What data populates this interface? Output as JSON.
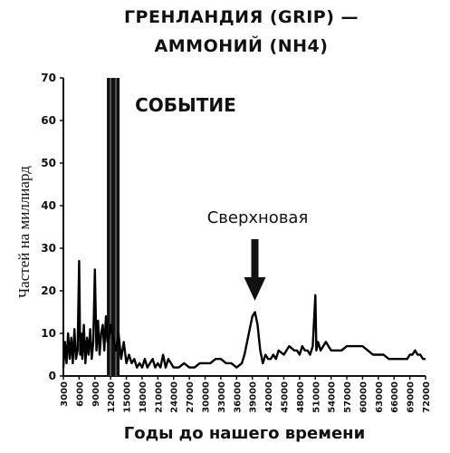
{
  "chart_data": {
    "type": "line",
    "title": "ГРЕНЛАНДИЯ (GRIP) —",
    "subtitle": "АММОНИЙ (NH4)",
    "xlabel": "Годы до нашего времени",
    "ylabel": "Частей на миллиард",
    "xlim": [
      3000,
      72000
    ],
    "ylim": [
      0,
      70
    ],
    "yticks": [
      0,
      10,
      20,
      30,
      40,
      50,
      60,
      70
    ],
    "xticks": [
      3000,
      6000,
      9000,
      12000,
      15000,
      18000,
      21000,
      24000,
      27000,
      30000,
      33000,
      36000,
      39000,
      42000,
      45000,
      48000,
      51000,
      54000,
      57000,
      60000,
      63000,
      66000,
      69000,
      72000
    ],
    "xtick_labels": [
      "3000",
      "6000",
      "9000",
      "12000",
      "15000",
      "18000",
      "21000",
      "24000",
      "27000",
      "30000",
      "33000",
      "36000",
      "39000",
      "42000",
      "45000",
      "48000",
      "51000",
      "54000",
      "57000",
      "60000",
      "63000",
      "66000",
      "69000",
      "72000"
    ],
    "grid": false,
    "series": [
      {
        "color": "#000000",
        "x": [
          3000,
          3300,
          3600,
          3900,
          4200,
          4500,
          4800,
          5100,
          5400,
          5700,
          6000,
          6200,
          6400,
          6600,
          6900,
          7200,
          7500,
          7800,
          8100,
          8400,
          8700,
          9000,
          9300,
          9600,
          9900,
          10200,
          10500,
          10800,
          11100,
          11400,
          11700,
          12000,
          12300,
          12600,
          13000,
          13500,
          14000,
          14500,
          15000,
          15500,
          16000,
          16500,
          17000,
          17500,
          18000,
          18500,
          19000,
          19500,
          20000,
          20500,
          21000,
          21500,
          22000,
          22500,
          23000,
          23500,
          24000,
          25000,
          26000,
          27000,
          28000,
          29000,
          30000,
          31000,
          32000,
          33000,
          34000,
          35000,
          36000,
          37000,
          37500,
          38000,
          38500,
          39000,
          39500,
          40000,
          40500,
          41000,
          41500,
          42000,
          42500,
          43000,
          43500,
          44000,
          45000,
          46000,
          47000,
          47500,
          48000,
          48500,
          49000,
          49500,
          50000,
          50500,
          51000,
          51200,
          51500,
          52000,
          52500,
          53000,
          53500,
          54000,
          55000,
          56000,
          57000,
          58000,
          59000,
          60000,
          61000,
          62000,
          63000,
          64000,
          65000,
          66000,
          67000,
          68000,
          68500,
          69000,
          69500,
          70000,
          70500,
          71000,
          71500,
          72000
        ],
        "y": [
          2,
          8,
          3,
          10,
          4,
          9,
          3,
          11,
          4,
          6,
          27,
          5,
          10,
          4,
          12,
          3,
          9,
          5,
          11,
          4,
          8,
          25,
          6,
          13,
          5,
          10,
          12,
          6,
          14,
          8,
          9,
          12,
          10,
          8,
          6,
          10,
          4,
          8,
          3,
          5,
          3,
          4,
          2,
          3,
          2,
          4,
          2,
          3,
          4,
          2,
          3,
          2,
          5,
          2,
          4,
          3,
          2,
          2,
          3,
          2,
          2,
          3,
          3,
          3,
          4,
          4,
          3,
          3,
          2,
          3,
          5,
          8,
          11,
          14,
          15,
          12,
          6,
          3,
          5,
          4,
          4,
          5,
          4,
          6,
          5,
          7,
          6,
          6,
          5,
          7,
          6,
          6,
          5,
          7,
          19,
          6,
          8,
          6,
          7,
          8,
          7,
          6,
          6,
          6,
          7,
          7,
          7,
          7,
          6,
          5,
          5,
          5,
          4,
          4,
          4,
          4,
          4,
          5,
          5,
          6,
          5,
          5,
          4,
          4
        ]
      }
    ],
    "annotations": {
      "event_label": "СОБЫТИЕ",
      "event_x": 12500,
      "supernova_label": "Сверхновая",
      "supernova_x": 40000
    }
  }
}
